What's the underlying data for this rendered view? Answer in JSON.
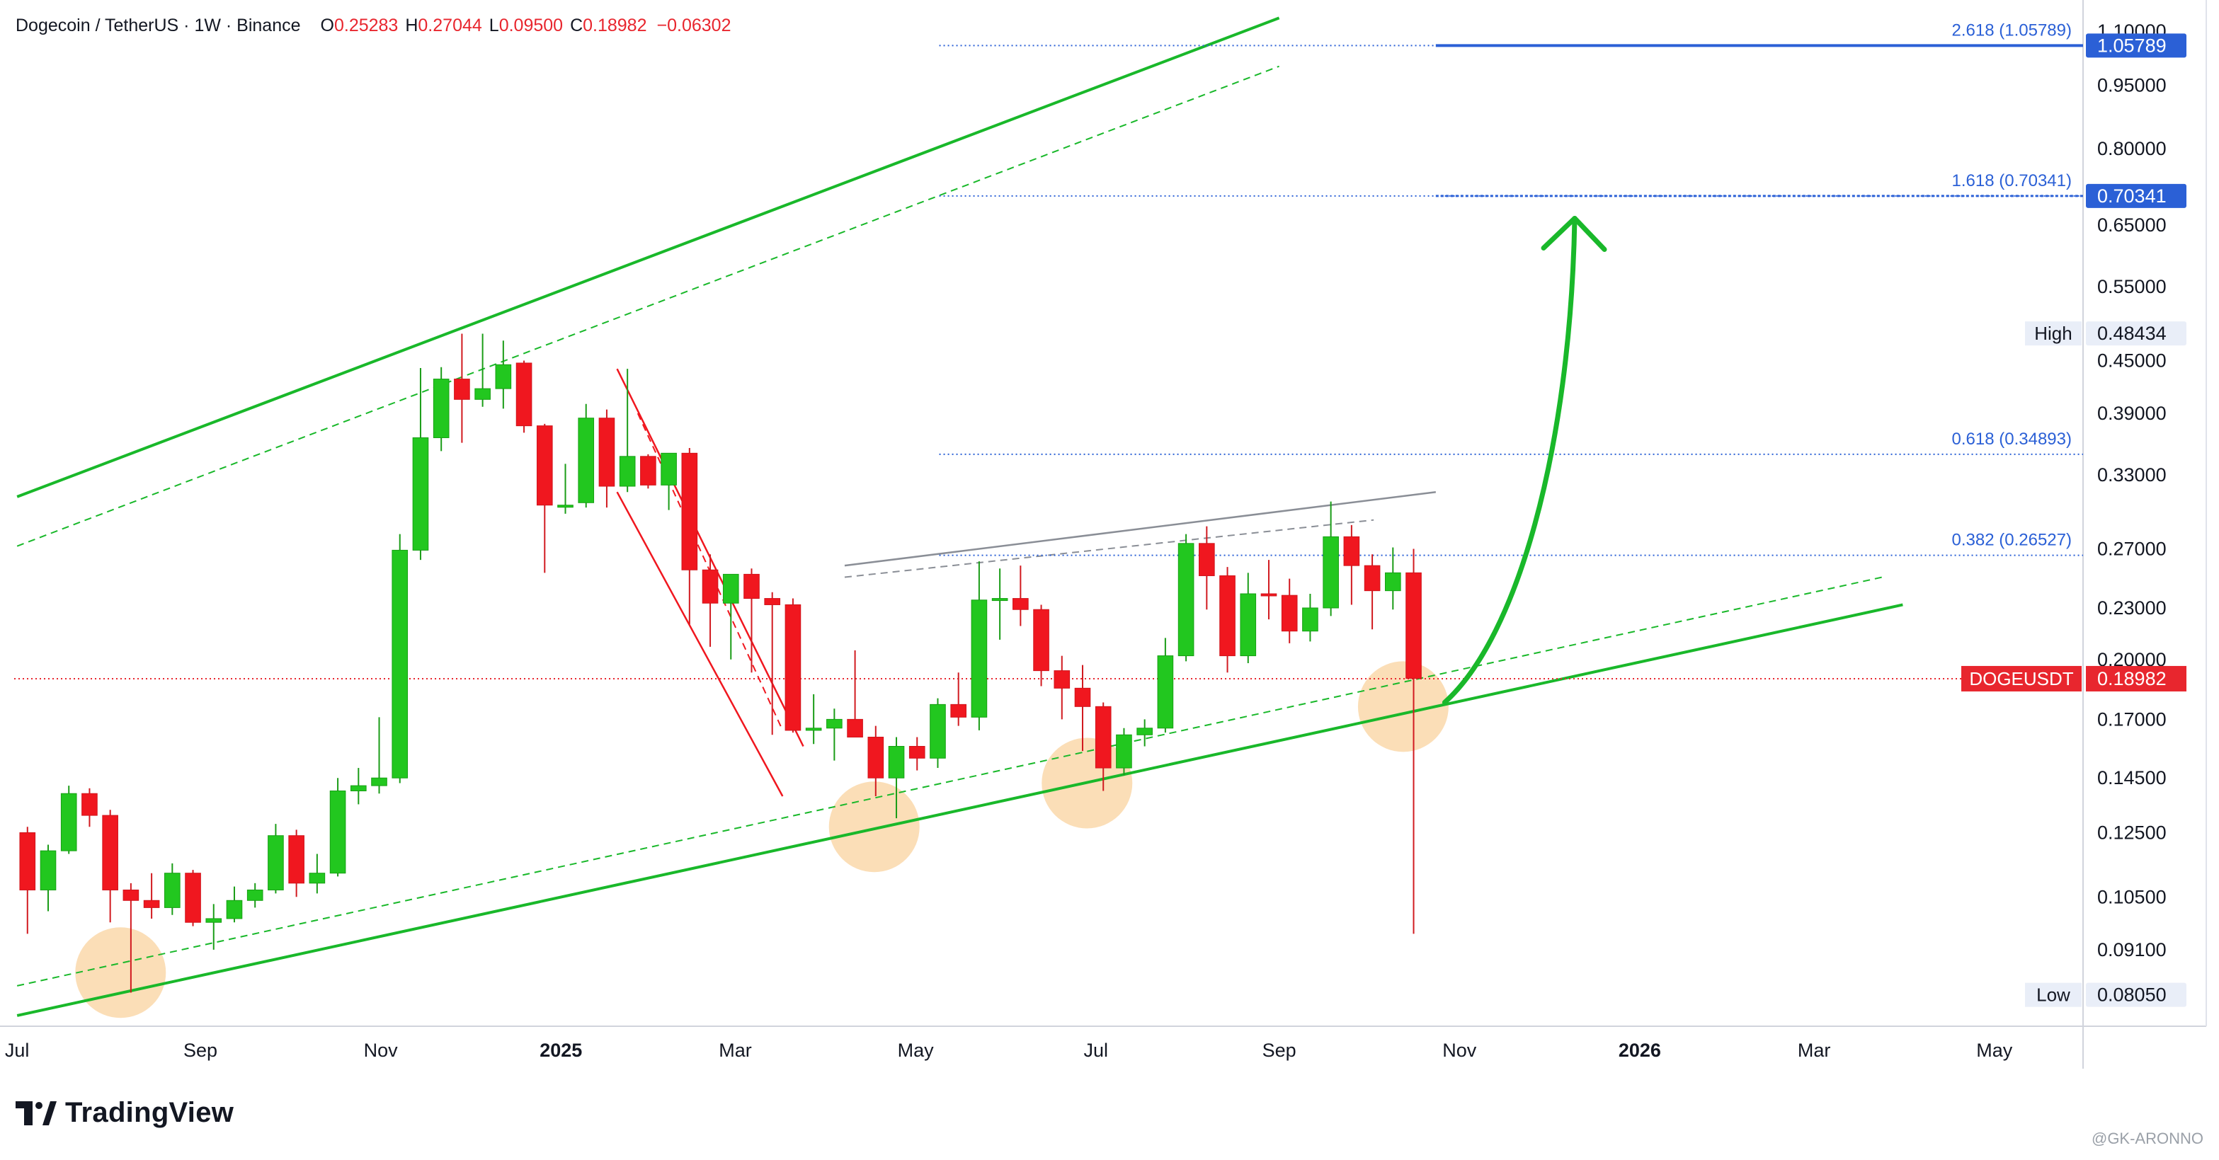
{
  "header": {
    "symbol": "Dogecoin / TetherUS · 1W · Binance",
    "open_label": "O",
    "open": "0.25283",
    "high_label": "H",
    "high": "0.27044",
    "low_label": "L",
    "low": "0.09500",
    "close_label": "C",
    "close": "0.18982",
    "change": "−0.06302"
  },
  "brand": {
    "name": "TradingView",
    "watermark": "@GK-ARONNO"
  },
  "colors": {
    "up": "#22c71f",
    "down": "#f0171f",
    "channel": "#19b82a",
    "fib": "#2b60d6",
    "price": "#e8262e",
    "text": "#131722",
    "axis": "#787b86",
    "highlight": "#f8c98a"
  },
  "chart_data": {
    "type": "candlestick",
    "interval": "1W",
    "y_scale": "log",
    "ylim": [
      0.0745,
      1.13
    ],
    "xlim": [
      "2024-06-30",
      "2026-05-31"
    ],
    "y_ticks": [
      "1.10000",
      "0.95000",
      "0.80000",
      "0.65000",
      "0.55000",
      "0.45000",
      "0.39000",
      "0.33000",
      "0.27000",
      "0.23000",
      "0.20000",
      "0.17000",
      "0.14500",
      "0.12500",
      "0.10500",
      "0.09100"
    ],
    "x_ticks": [
      {
        "label": "Jul",
        "date": "2024-07-01",
        "bold": false
      },
      {
        "label": "Sep",
        "date": "2024-09-01",
        "bold": false
      },
      {
        "label": "Nov",
        "date": "2024-11-01",
        "bold": false
      },
      {
        "label": "2025",
        "date": "2025-01-01",
        "bold": true
      },
      {
        "label": "Mar",
        "date": "2025-03-01",
        "bold": false
      },
      {
        "label": "May",
        "date": "2025-05-01",
        "bold": false
      },
      {
        "label": "Jul",
        "date": "2025-07-01",
        "bold": false
      },
      {
        "label": "Sep",
        "date": "2025-09-01",
        "bold": false
      },
      {
        "label": "Nov",
        "date": "2025-11-01",
        "bold": false
      },
      {
        "label": "2026",
        "date": "2026-01-01",
        "bold": true
      },
      {
        "label": "Mar",
        "date": "2026-03-01",
        "bold": false
      },
      {
        "label": "May",
        "date": "2026-05-01",
        "bold": false
      }
    ],
    "fib_levels": [
      {
        "label": "2.618 (1.05789)",
        "value": 1.05789,
        "tag": "1.05789",
        "solid_start": "2025-10-24"
      },
      {
        "label": "1.618 (0.70341)",
        "value": 0.70341,
        "tag": "0.70341",
        "solid_start": "2025-10-24"
      },
      {
        "label": "0.618 (0.34893)",
        "value": 0.34893,
        "tag": null,
        "solid_start": null
      },
      {
        "label": "0.382 (0.26527)",
        "value": 0.26527,
        "tag": null,
        "solid_start": null
      }
    ],
    "fib_start": "2025-05-09",
    "high_marker": {
      "label": "High",
      "value": "0.48434",
      "y": 0.48434
    },
    "low_marker": {
      "label": "Low",
      "value": "0.08050",
      "y": 0.0805
    },
    "current_price": {
      "label": "DOGEUSDT",
      "value": "0.18982",
      "y": 0.18982
    },
    "candles": [
      {
        "t": "2024-07-01",
        "o": 0.125,
        "h": 0.127,
        "l": 0.095,
        "c": 0.107
      },
      {
        "t": "2024-07-08",
        "o": 0.107,
        "h": 0.121,
        "l": 0.101,
        "c": 0.119
      },
      {
        "t": "2024-07-15",
        "o": 0.119,
        "h": 0.142,
        "l": 0.118,
        "c": 0.139
      },
      {
        "t": "2024-07-22",
        "o": 0.139,
        "h": 0.141,
        "l": 0.127,
        "c": 0.131
      },
      {
        "t": "2024-07-29",
        "o": 0.131,
        "h": 0.133,
        "l": 0.098,
        "c": 0.107
      },
      {
        "t": "2024-08-05",
        "o": 0.107,
        "h": 0.109,
        "l": 0.081,
        "c": 0.104
      },
      {
        "t": "2024-08-12",
        "o": 0.104,
        "h": 0.112,
        "l": 0.099,
        "c": 0.102
      },
      {
        "t": "2024-08-19",
        "o": 0.102,
        "h": 0.115,
        "l": 0.1,
        "c": 0.112
      },
      {
        "t": "2024-08-26",
        "o": 0.112,
        "h": 0.113,
        "l": 0.097,
        "c": 0.098
      },
      {
        "t": "2024-09-02",
        "o": 0.098,
        "h": 0.103,
        "l": 0.091,
        "c": 0.099
      },
      {
        "t": "2024-09-09",
        "o": 0.099,
        "h": 0.108,
        "l": 0.098,
        "c": 0.104
      },
      {
        "t": "2024-09-16",
        "o": 0.104,
        "h": 0.109,
        "l": 0.102,
        "c": 0.107
      },
      {
        "t": "2024-09-23",
        "o": 0.107,
        "h": 0.128,
        "l": 0.106,
        "c": 0.124
      },
      {
        "t": "2024-09-30",
        "o": 0.124,
        "h": 0.126,
        "l": 0.105,
        "c": 0.109
      },
      {
        "t": "2024-10-07",
        "o": 0.109,
        "h": 0.118,
        "l": 0.106,
        "c": 0.112
      },
      {
        "t": "2024-10-14",
        "o": 0.112,
        "h": 0.145,
        "l": 0.111,
        "c": 0.14
      },
      {
        "t": "2024-10-21",
        "o": 0.14,
        "h": 0.149,
        "l": 0.135,
        "c": 0.142
      },
      {
        "t": "2024-10-28",
        "o": 0.142,
        "h": 0.171,
        "l": 0.139,
        "c": 0.145
      },
      {
        "t": "2024-11-04",
        "o": 0.145,
        "h": 0.281,
        "l": 0.143,
        "c": 0.269
      },
      {
        "t": "2024-11-11",
        "o": 0.269,
        "h": 0.441,
        "l": 0.262,
        "c": 0.365
      },
      {
        "t": "2024-11-18",
        "o": 0.365,
        "h": 0.442,
        "l": 0.352,
        "c": 0.428
      },
      {
        "t": "2024-11-25",
        "o": 0.428,
        "h": 0.484,
        "l": 0.36,
        "c": 0.405
      },
      {
        "t": "2024-12-02",
        "o": 0.405,
        "h": 0.484,
        "l": 0.397,
        "c": 0.417
      },
      {
        "t": "2024-12-09",
        "o": 0.417,
        "h": 0.475,
        "l": 0.395,
        "c": 0.445
      },
      {
        "t": "2024-12-16",
        "o": 0.447,
        "h": 0.45,
        "l": 0.37,
        "c": 0.377
      },
      {
        "t": "2024-12-23",
        "o": 0.377,
        "h": 0.379,
        "l": 0.253,
        "c": 0.304
      },
      {
        "t": "2024-12-30",
        "o": 0.304,
        "h": 0.34,
        "l": 0.297,
        "c": 0.304
      },
      {
        "t": "2025-01-06",
        "o": 0.306,
        "h": 0.4,
        "l": 0.302,
        "c": 0.385
      },
      {
        "t": "2025-01-13",
        "o": 0.385,
        "h": 0.394,
        "l": 0.302,
        "c": 0.32
      },
      {
        "t": "2025-01-20",
        "o": 0.32,
        "h": 0.44,
        "l": 0.315,
        "c": 0.347
      },
      {
        "t": "2025-01-27",
        "o": 0.347,
        "h": 0.349,
        "l": 0.318,
        "c": 0.321
      },
      {
        "t": "2025-02-03",
        "o": 0.321,
        "h": 0.35,
        "l": 0.3,
        "c": 0.35
      },
      {
        "t": "2025-02-10",
        "o": 0.35,
        "h": 0.355,
        "l": 0.22,
        "c": 0.255
      },
      {
        "t": "2025-02-17",
        "o": 0.255,
        "h": 0.266,
        "l": 0.207,
        "c": 0.233
      },
      {
        "t": "2025-02-24",
        "o": 0.233,
        "h": 0.252,
        "l": 0.2,
        "c": 0.252
      },
      {
        "t": "2025-03-03",
        "o": 0.252,
        "h": 0.256,
        "l": 0.193,
        "c": 0.236
      },
      {
        "t": "2025-03-10",
        "o": 0.236,
        "h": 0.24,
        "l": 0.163,
        "c": 0.232
      },
      {
        "t": "2025-03-17",
        "o": 0.232,
        "h": 0.236,
        "l": 0.164,
        "c": 0.165
      },
      {
        "t": "2025-03-24",
        "o": 0.165,
        "h": 0.182,
        "l": 0.159,
        "c": 0.166
      },
      {
        "t": "2025-03-31",
        "o": 0.166,
        "h": 0.175,
        "l": 0.152,
        "c": 0.17
      },
      {
        "t": "2025-04-07",
        "o": 0.17,
        "h": 0.205,
        "l": 0.163,
        "c": 0.162
      },
      {
        "t": "2025-04-14",
        "o": 0.162,
        "h": 0.167,
        "l": 0.138,
        "c": 0.145
      },
      {
        "t": "2025-04-21",
        "o": 0.145,
        "h": 0.162,
        "l": 0.13,
        "c": 0.158
      },
      {
        "t": "2025-04-28",
        "o": 0.158,
        "h": 0.162,
        "l": 0.148,
        "c": 0.153
      },
      {
        "t": "2025-05-05",
        "o": 0.153,
        "h": 0.18,
        "l": 0.149,
        "c": 0.177
      },
      {
        "t": "2025-05-12",
        "o": 0.177,
        "h": 0.193,
        "l": 0.167,
        "c": 0.171
      },
      {
        "t": "2025-05-19",
        "o": 0.171,
        "h": 0.261,
        "l": 0.165,
        "c": 0.235
      },
      {
        "t": "2025-05-26",
        "o": 0.235,
        "h": 0.256,
        "l": 0.211,
        "c": 0.236
      },
      {
        "t": "2025-06-02",
        "o": 0.236,
        "h": 0.258,
        "l": 0.219,
        "c": 0.229
      },
      {
        "t": "2025-06-09",
        "o": 0.229,
        "h": 0.232,
        "l": 0.186,
        "c": 0.194
      },
      {
        "t": "2025-06-16",
        "o": 0.194,
        "h": 0.202,
        "l": 0.17,
        "c": 0.185
      },
      {
        "t": "2025-06-23",
        "o": 0.185,
        "h": 0.197,
        "l": 0.156,
        "c": 0.176
      },
      {
        "t": "2025-06-30",
        "o": 0.176,
        "h": 0.178,
        "l": 0.14,
        "c": 0.149
      },
      {
        "t": "2025-07-07",
        "o": 0.149,
        "h": 0.166,
        "l": 0.146,
        "c": 0.163
      },
      {
        "t": "2025-07-14",
        "o": 0.163,
        "h": 0.17,
        "l": 0.158,
        "c": 0.166
      },
      {
        "t": "2025-07-21",
        "o": 0.166,
        "h": 0.212,
        "l": 0.164,
        "c": 0.202
      },
      {
        "t": "2025-07-28",
        "o": 0.202,
        "h": 0.281,
        "l": 0.199,
        "c": 0.274
      },
      {
        "t": "2025-08-04",
        "o": 0.274,
        "h": 0.287,
        "l": 0.229,
        "c": 0.251
      },
      {
        "t": "2025-08-11",
        "o": 0.251,
        "h": 0.257,
        "l": 0.193,
        "c": 0.202
      },
      {
        "t": "2025-08-18",
        "o": 0.202,
        "h": 0.253,
        "l": 0.198,
        "c": 0.239
      },
      {
        "t": "2025-08-25",
        "o": 0.239,
        "h": 0.262,
        "l": 0.223,
        "c": 0.238
      },
      {
        "t": "2025-09-01",
        "o": 0.238,
        "h": 0.249,
        "l": 0.209,
        "c": 0.216
      },
      {
        "t": "2025-09-08",
        "o": 0.216,
        "h": 0.239,
        "l": 0.21,
        "c": 0.23
      },
      {
        "t": "2025-09-15",
        "o": 0.23,
        "h": 0.307,
        "l": 0.225,
        "c": 0.279
      },
      {
        "t": "2025-09-22",
        "o": 0.279,
        "h": 0.288,
        "l": 0.232,
        "c": 0.258
      },
      {
        "t": "2025-09-29",
        "o": 0.258,
        "h": 0.266,
        "l": 0.217,
        "c": 0.241
      },
      {
        "t": "2025-10-06",
        "o": 0.241,
        "h": 0.271,
        "l": 0.229,
        "c": 0.253
      },
      {
        "t": "2025-10-13",
        "o": 0.253,
        "h": 0.27,
        "l": 0.095,
        "c": 0.19
      }
    ],
    "lines": [
      {
        "name": "channel-upper",
        "style": "solid",
        "color": "green",
        "p1": [
          "2024-07-01",
          0.311
        ],
        "p2": [
          "2025-09-01",
          1.14
        ]
      },
      {
        "name": "channel-upper-inner",
        "style": "dashed",
        "color": "green",
        "p1": [
          "2024-07-01",
          0.272
        ],
        "p2": [
          "2025-09-01",
          1.0
        ]
      },
      {
        "name": "support",
        "style": "solid",
        "color": "green",
        "p1": [
          "2024-07-01",
          0.0761
        ],
        "p2": [
          "2026-03-31",
          0.232
        ]
      },
      {
        "name": "support-inner",
        "style": "dashed",
        "color": "green",
        "p1": [
          "2024-07-01",
          0.0825
        ],
        "p2": [
          "2026-03-24",
          0.25
        ]
      },
      {
        "name": "falling-channel-upper",
        "style": "solid",
        "color": "red",
        "p1": [
          "2025-01-20",
          0.44
        ],
        "p2": [
          "2025-03-24",
          0.158
        ]
      },
      {
        "name": "falling-channel-mid",
        "style": "dashed",
        "color": "red",
        "p1": [
          "2025-01-27",
          0.39
        ],
        "p2": [
          "2025-03-17",
          0.165
        ]
      },
      {
        "name": "falling-channel-lower",
        "style": "solid",
        "color": "red",
        "p1": [
          "2025-01-20",
          0.315
        ],
        "p2": [
          "2025-03-17",
          0.138
        ]
      },
      {
        "name": "resistance",
        "style": "solid",
        "color": "gray",
        "p1": [
          "2025-04-07",
          0.258
        ],
        "p2": [
          "2025-10-24",
          0.315
        ]
      },
      {
        "name": "resistance-dashed",
        "style": "dashed",
        "color": "gray",
        "p1": [
          "2025-04-07",
          0.25
        ],
        "p2": [
          "2025-10-03",
          0.292
        ]
      }
    ],
    "highlights": [
      {
        "t": "2024-08-05",
        "y": 0.0855
      },
      {
        "t": "2025-04-17",
        "y": 0.127
      },
      {
        "t": "2025-06-28",
        "y": 0.143
      },
      {
        "t": "2025-10-13",
        "y": 0.176
      }
    ],
    "arrow": {
      "from": [
        "2025-10-27",
        0.178
      ],
      "to": [
        "2025-12-10",
        0.662
      ]
    }
  }
}
